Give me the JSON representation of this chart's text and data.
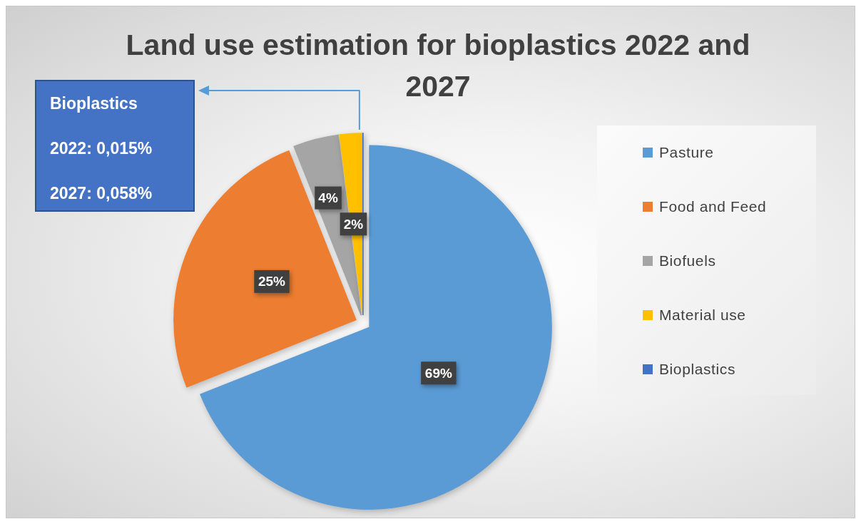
{
  "chart_data": {
    "type": "pie",
    "title": "Land use estimation for bioplastics 2022 and 2027",
    "categories": [
      "Pasture",
      "Food and Feed",
      "Biofuels",
      "Material use",
      "Bioplastics"
    ],
    "values": [
      69,
      25,
      4,
      2,
      0.015
    ],
    "colors": [
      "#5b9bd5",
      "#ed7d31",
      "#a5a5a5",
      "#ffc000",
      "#4472c4"
    ],
    "value_labels": [
      "69%",
      "25%",
      "4%",
      "2%",
      null
    ],
    "legend": "right",
    "annotations": [
      "Bioplastics",
      "2022: 0,015%",
      "2027: 0,058%"
    ]
  }
}
